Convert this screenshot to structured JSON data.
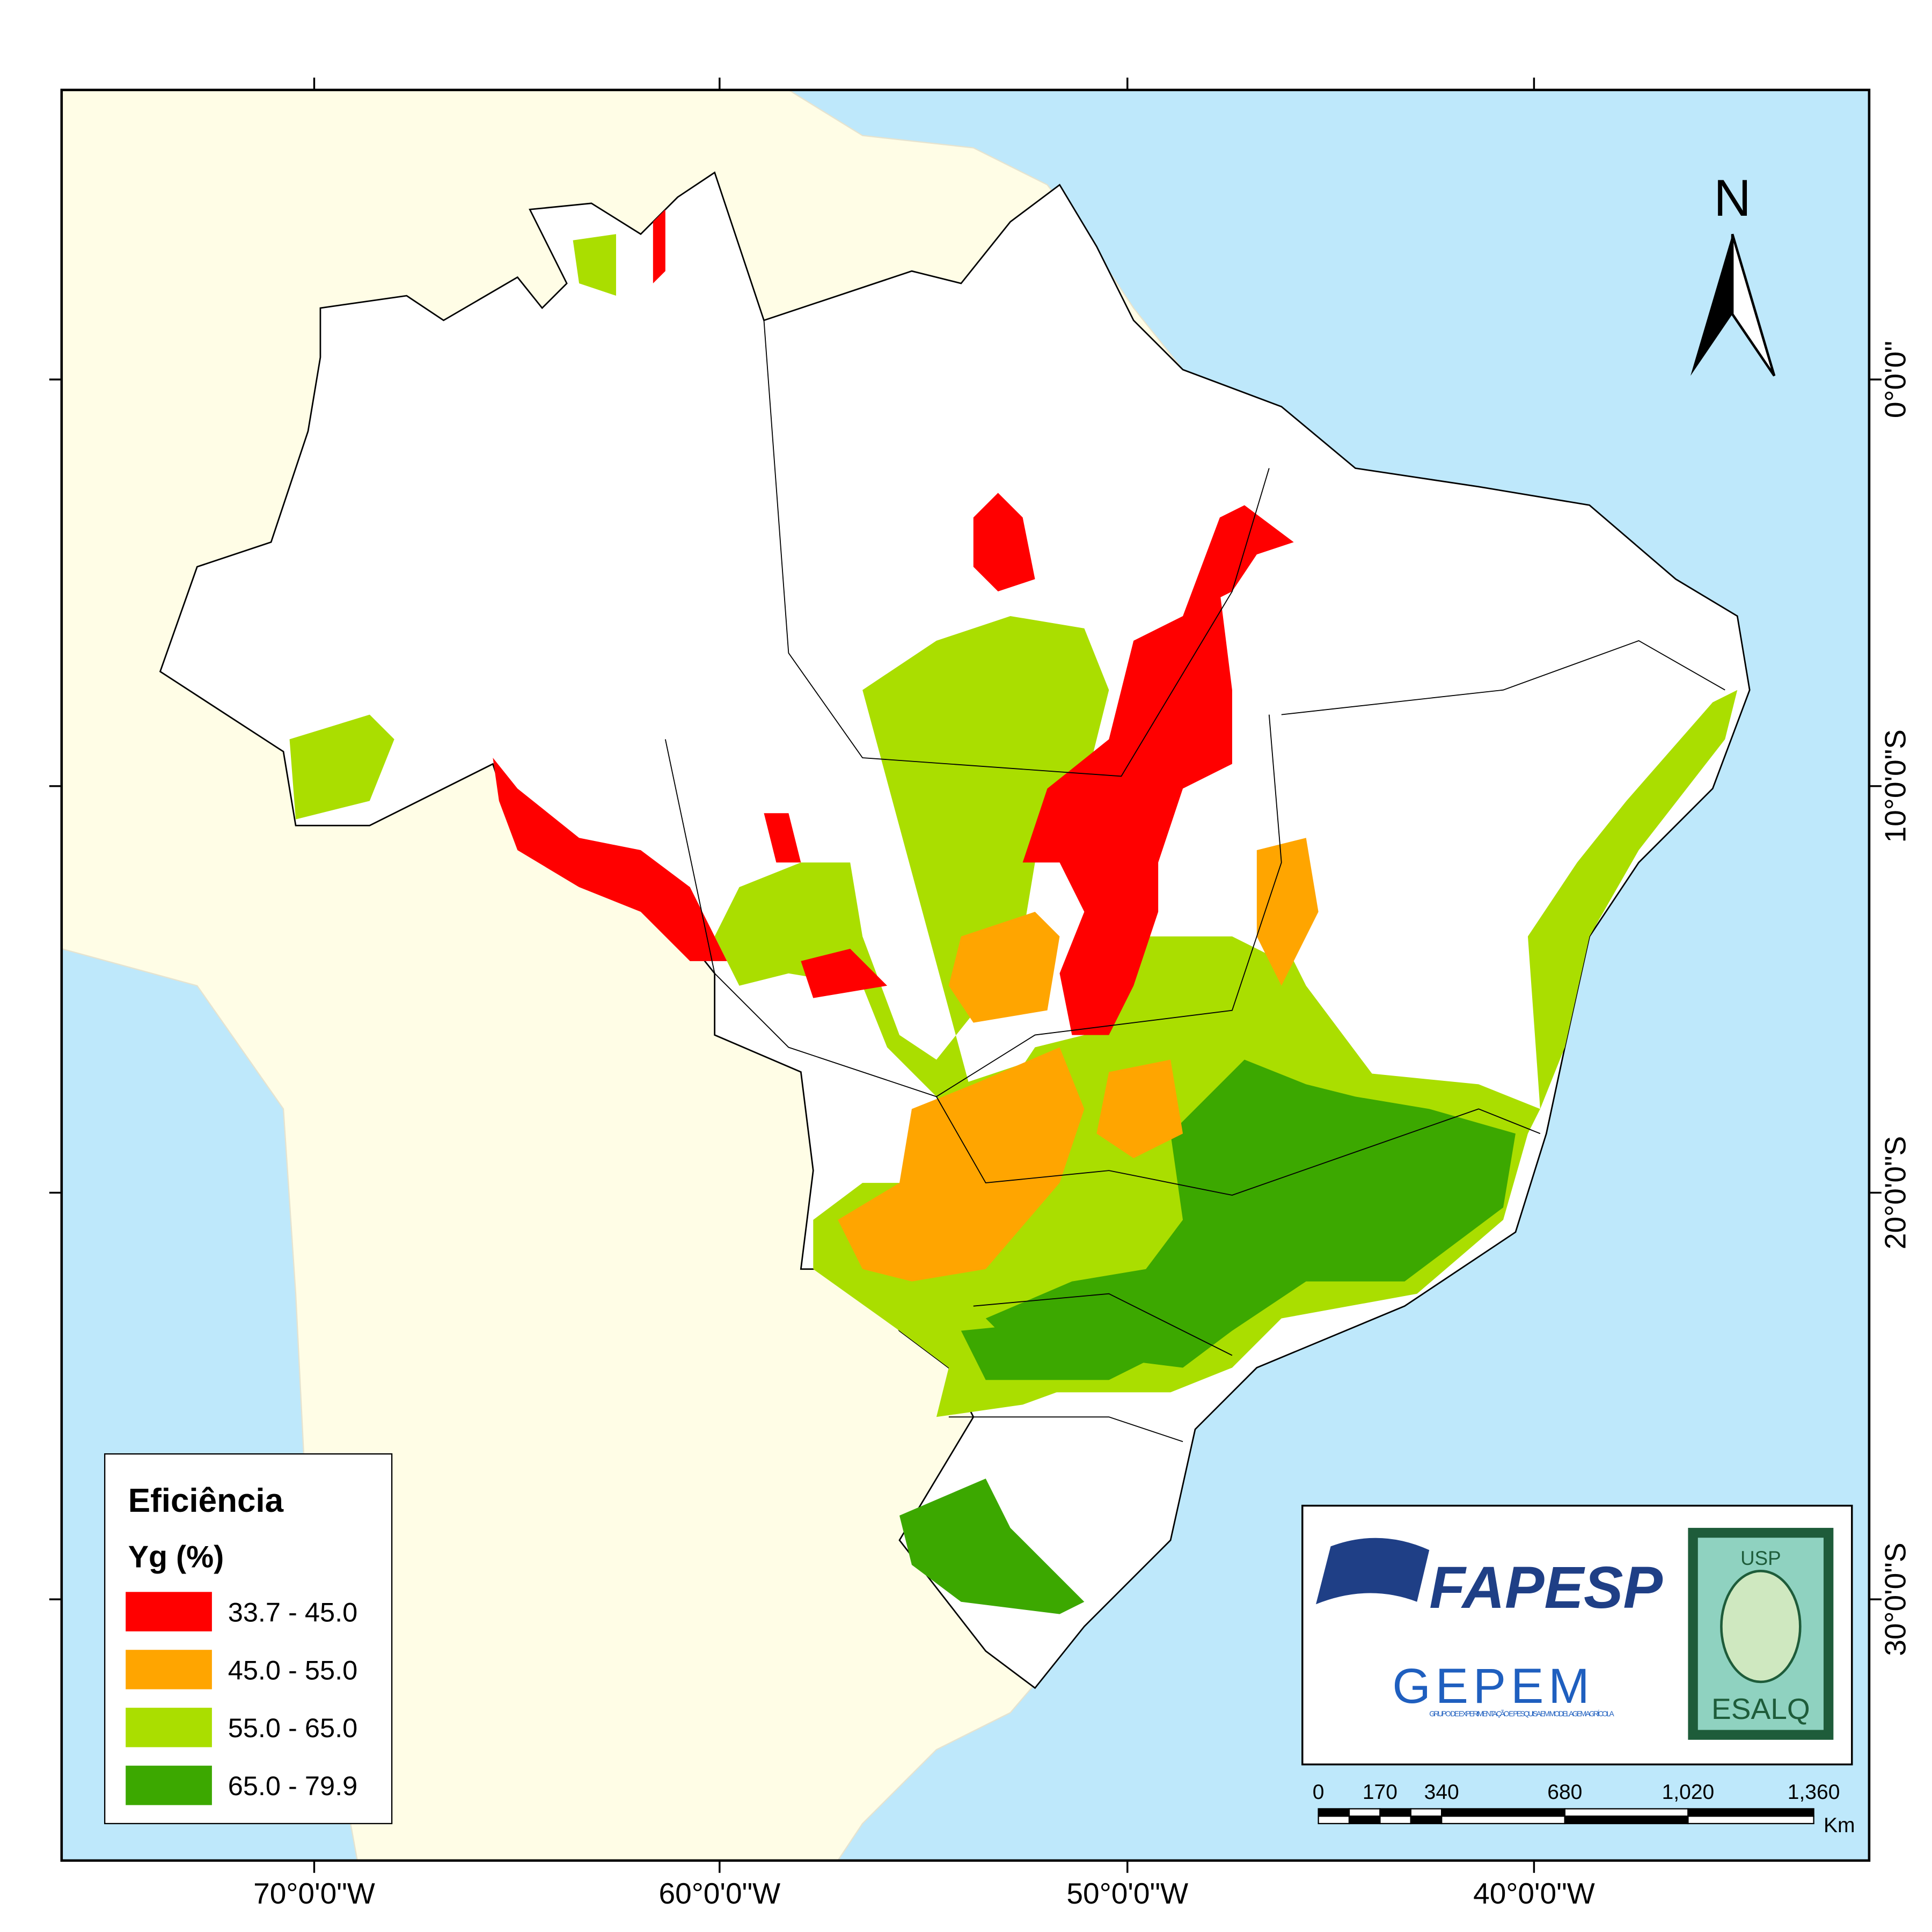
{
  "map": {
    "legend": {
      "title": "Eficiência",
      "subtitle": "Yg (%)",
      "classes": [
        {
          "label": "33.7 - 45.0",
          "color": "#ff0000"
        },
        {
          "label": "45.0 - 55.0",
          "color": "#ffa500"
        },
        {
          "label": "55.0 - 65.0",
          "color": "#aade00"
        },
        {
          "label": "65.0 - 79.9",
          "color": "#3ca800"
        }
      ]
    },
    "north_arrow": "N",
    "longitude_labels": [
      "70°0'0\"W",
      "60°0'0\"W",
      "50°0'0\"W",
      "40°0'0\"W"
    ],
    "latitude_labels": [
      "0°0'0\"",
      "10°0'0\"S",
      "20°0'0\"S",
      "30°0'0\"S"
    ],
    "scale_bar": {
      "labels": [
        "0",
        "170",
        "340",
        "680",
        "1,020",
        "1,360"
      ],
      "unit": "Km"
    },
    "logos": {
      "fapesp": "FAPESP",
      "gepem": "GEPEM",
      "gepem_subtitle": "GRUPO DE EXPERIMENTAÇÃO E PESQUISA EM MODELAGEM AGRÍCOLA",
      "usp": "USP",
      "esalq": "ESALQ"
    }
  }
}
